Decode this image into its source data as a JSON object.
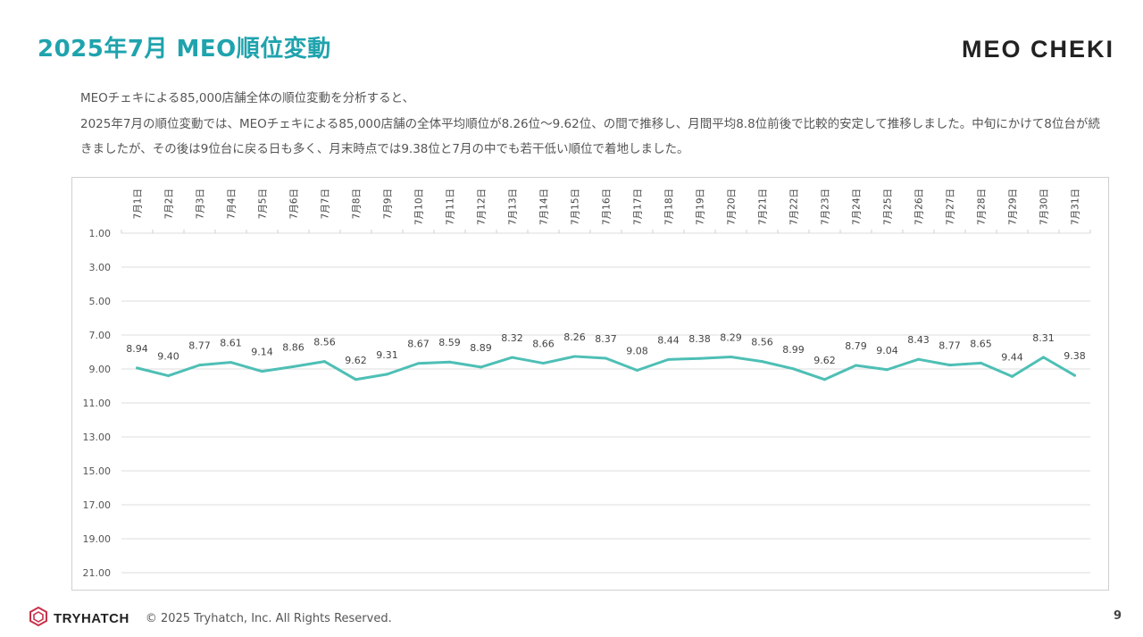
{
  "header": {
    "title": "2025年7月 MEO順位変動",
    "brand": "MEO CHEKI"
  },
  "description": {
    "line1": "MEOチェキによる85,000店舗全体の順位変動を分析すると、",
    "line2": "2025年7月の順位変動では、MEOチェキによる85,000店舗の全体平均順位が8.26位〜9.62位、の間で推移し、月間平均8.8位前後で比較的安定して推移しました。中旬にかけて8位台が続きましたが、その後は9位台に戻る日も多く、月末時点では9.38位と7月の中でも若干低い順位で着地しました。"
  },
  "chart_data": {
    "type": "line",
    "categories": [
      "7月1日",
      "7月2日",
      "7月3日",
      "7月4日",
      "7月5日",
      "7月6日",
      "7月7日",
      "7月8日",
      "7月9日",
      "7月10日",
      "7月11日",
      "7月12日",
      "7月13日",
      "7月14日",
      "7月15日",
      "7月16日",
      "7月17日",
      "7月18日",
      "7月19日",
      "7月20日",
      "7月21日",
      "7月22日",
      "7月23日",
      "7月24日",
      "7月25日",
      "7月26日",
      "7月27日",
      "7月28日",
      "7月29日",
      "7月30日",
      "7月31日"
    ],
    "series": [
      {
        "values": [
          8.94,
          9.4,
          8.77,
          8.61,
          9.14,
          8.86,
          8.56,
          9.62,
          9.31,
          8.67,
          8.59,
          8.89,
          8.32,
          8.66,
          8.26,
          8.37,
          9.08,
          8.44,
          8.38,
          8.29,
          8.56,
          8.99,
          9.62,
          8.79,
          9.04,
          8.43,
          8.77,
          8.65,
          9.44,
          8.31,
          9.38
        ]
      }
    ],
    "y_ticks": [
      "1.00",
      "3.00",
      "5.00",
      "7.00",
      "9.00",
      "11.00",
      "13.00",
      "15.00",
      "17.00",
      "19.00",
      "21.00"
    ],
    "ylim": [
      1,
      21
    ],
    "y_reversed": true,
    "x_axis_position": "top",
    "grid": true,
    "line_color": "#4ebfb5"
  },
  "footer": {
    "logo_text": "TRYHATCH",
    "copyright": "© 2025 Tryhatch, Inc. All Rights Reserved.",
    "page_number": "9"
  },
  "colors": {
    "title": "#1fa3ad",
    "logo": "#c8324a"
  }
}
